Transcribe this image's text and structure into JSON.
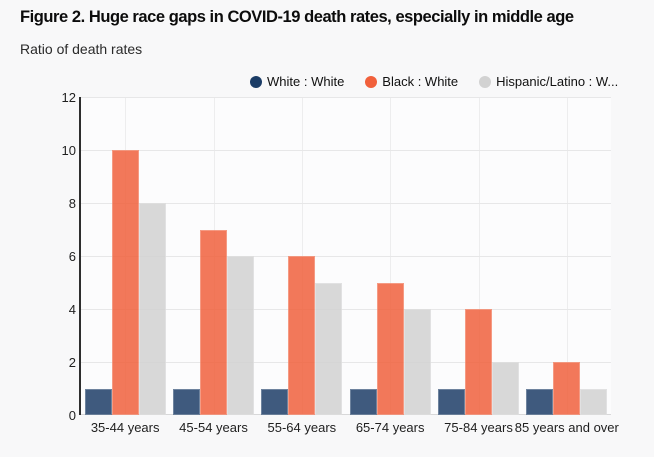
{
  "chart_data": {
    "type": "bar",
    "title": "Figure 2. Huge race gaps in COVID-19 death rates, especially in middle age",
    "subtitle": "Ratio of death rates",
    "categories": [
      "35-44 years",
      "45-54 years",
      "55-64 years",
      "65-74 years",
      "75-84 years",
      "85 years and over"
    ],
    "series": [
      {
        "name": "White : White",
        "color": "#1b3c66",
        "values": [
          1,
          1,
          1,
          1,
          1,
          1
        ]
      },
      {
        "name": "Black : White",
        "color": "#f1603b",
        "values": [
          10,
          7,
          6,
          5,
          4,
          2
        ]
      },
      {
        "name": "Hispanic/Latino : W...",
        "color": "#d2d2d2",
        "values": [
          8,
          6,
          5,
          4,
          2,
          1
        ]
      }
    ],
    "xlabel": "",
    "ylabel": "Ratio of death rates",
    "ylim": [
      0,
      12
    ],
    "yticks": [
      0,
      2,
      4,
      6,
      8,
      10,
      12
    ],
    "grid": true,
    "legend_position": "top"
  },
  "theme": {
    "background": "#f8f8f9",
    "plot_background": "#fcfcfd",
    "gridline": "#e7e7e8",
    "vertical_gridline": "#ededee",
    "axis_line": "#2e2e2e",
    "baseline": "#d8d8d9",
    "text": "#1f1f1f"
  }
}
